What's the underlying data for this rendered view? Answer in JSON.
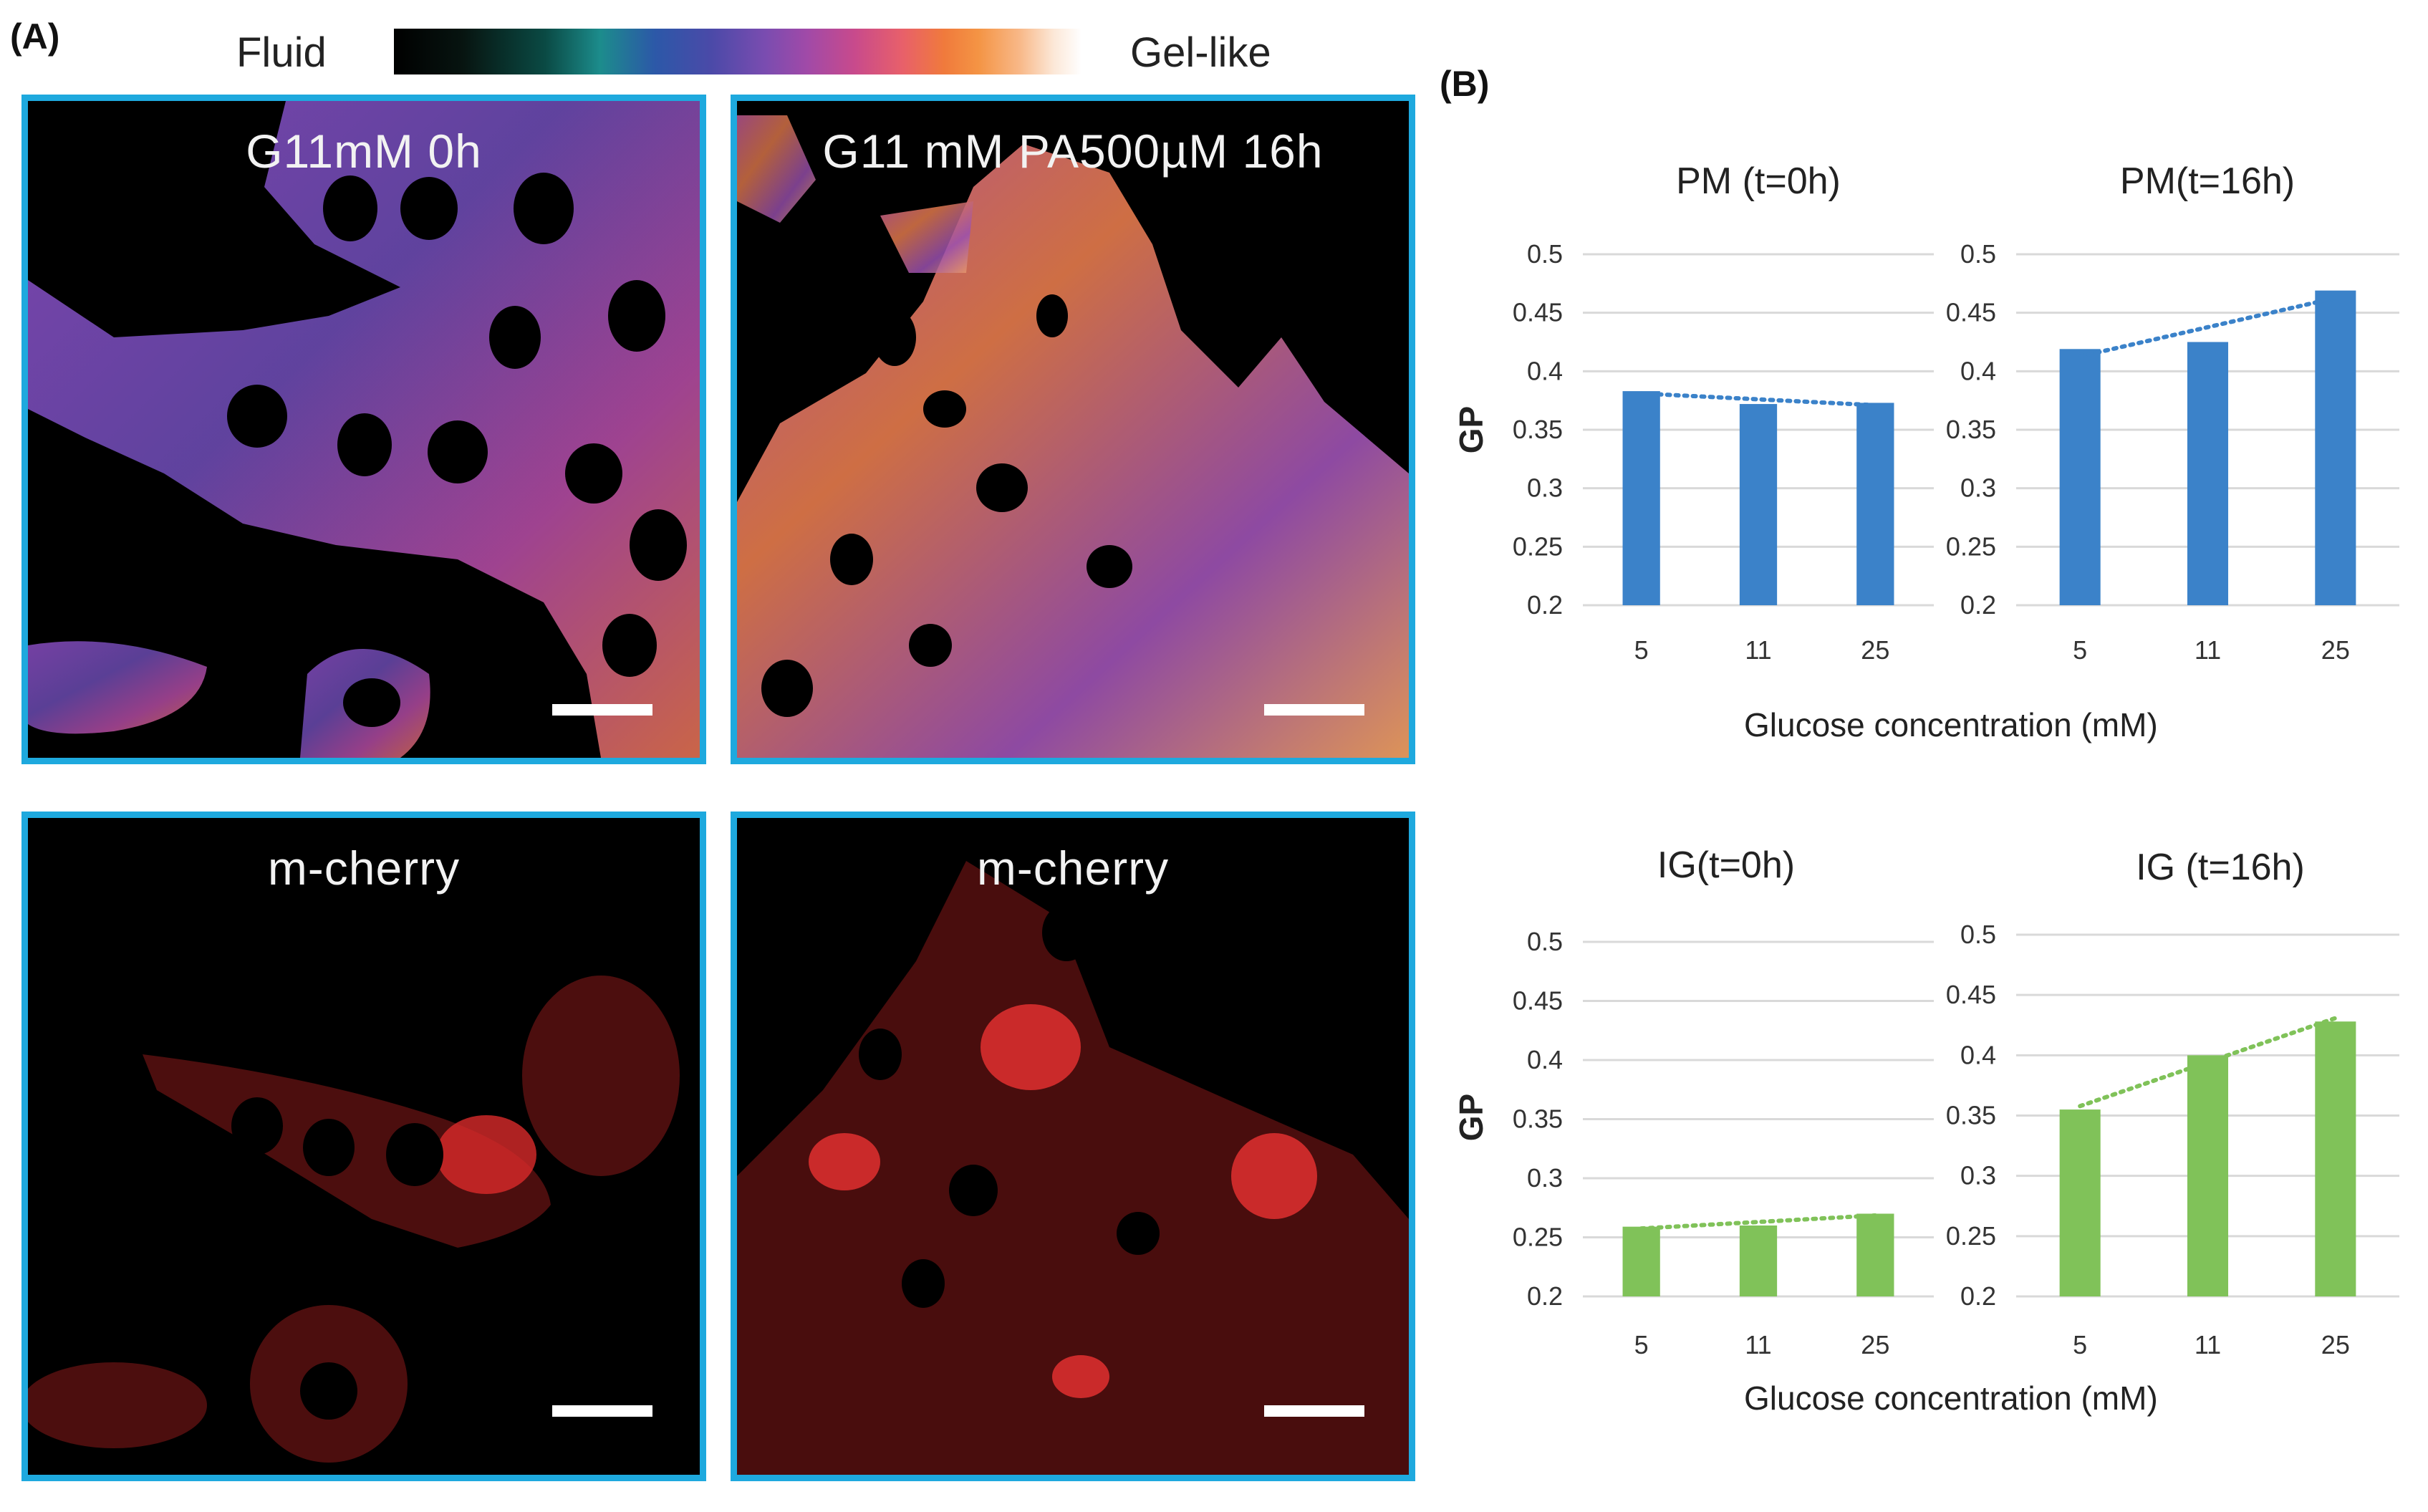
{
  "panel_labels": {
    "a": "(A)",
    "b": "(B)"
  },
  "colorbar": {
    "left_label": "Fluid",
    "right_label": "Gel-like"
  },
  "images": {
    "top_left": {
      "title": "G11mM 0h",
      "channel": "GP-map"
    },
    "top_right": {
      "title": "G11 mM PA500µM 16h",
      "channel": "GP-map"
    },
    "bottom_left": {
      "title": "m-cherry",
      "channel": "m-cherry"
    },
    "bottom_right": {
      "title": "m-cherry",
      "channel": "m-cherry"
    }
  },
  "colors": {
    "blue_bar": "#3b82c9",
    "green_bar": "#80c259",
    "frame": "#1ea9de",
    "grid": "#d9d9d9"
  },
  "x_axis_titles": {
    "top": "Glucose concentration (mM)",
    "bottom": "Glucose concentration (mM)"
  },
  "chart_data": [
    {
      "type": "bar",
      "title": "PM (t=0h)",
      "categories": [
        "5",
        "11",
        "25"
      ],
      "values": [
        0.383,
        0.372,
        0.373
      ],
      "ylabel": "GP",
      "ylim": [
        0.2,
        0.5
      ],
      "yticks": [
        "0.5",
        "0.45",
        "0.4",
        "0.35",
        "0.3",
        "0.25",
        "0.2"
      ],
      "trendline": "dotted",
      "grid": true
    },
    {
      "type": "bar",
      "title": "PM(t=16h)",
      "categories": [
        "5",
        "11",
        "25"
      ],
      "values": [
        0.419,
        0.425,
        0.469
      ],
      "ylabel": "",
      "ylim": [
        0.2,
        0.5
      ],
      "yticks": [
        "0.5",
        "0.45",
        "0.4",
        "0.35",
        "0.3",
        "0.25",
        "0.2"
      ],
      "trendline": "dotted",
      "grid": true
    },
    {
      "type": "bar",
      "title": "IG(t=0h)",
      "categories": [
        "5",
        "11",
        "25"
      ],
      "values": [
        0.259,
        0.26,
        0.27
      ],
      "ylabel": "GP",
      "ylim": [
        0.2,
        0.5
      ],
      "yticks": [
        "0.5",
        "0.45",
        "0.4",
        "0.35",
        "0.3",
        "0.25",
        "0.2"
      ],
      "trendline": "dotted",
      "grid": true
    },
    {
      "type": "bar",
      "title": "IG (t=16h)",
      "categories": [
        "5",
        "11",
        "25"
      ],
      "values": [
        0.355,
        0.4,
        0.428
      ],
      "ylabel": "",
      "ylim": [
        0.2,
        0.5
      ],
      "yticks": [
        "0.5",
        "0.45",
        "0.4",
        "0.35",
        "0.3",
        "0.25",
        "0.2"
      ],
      "trendline": "dotted",
      "grid": true
    }
  ]
}
